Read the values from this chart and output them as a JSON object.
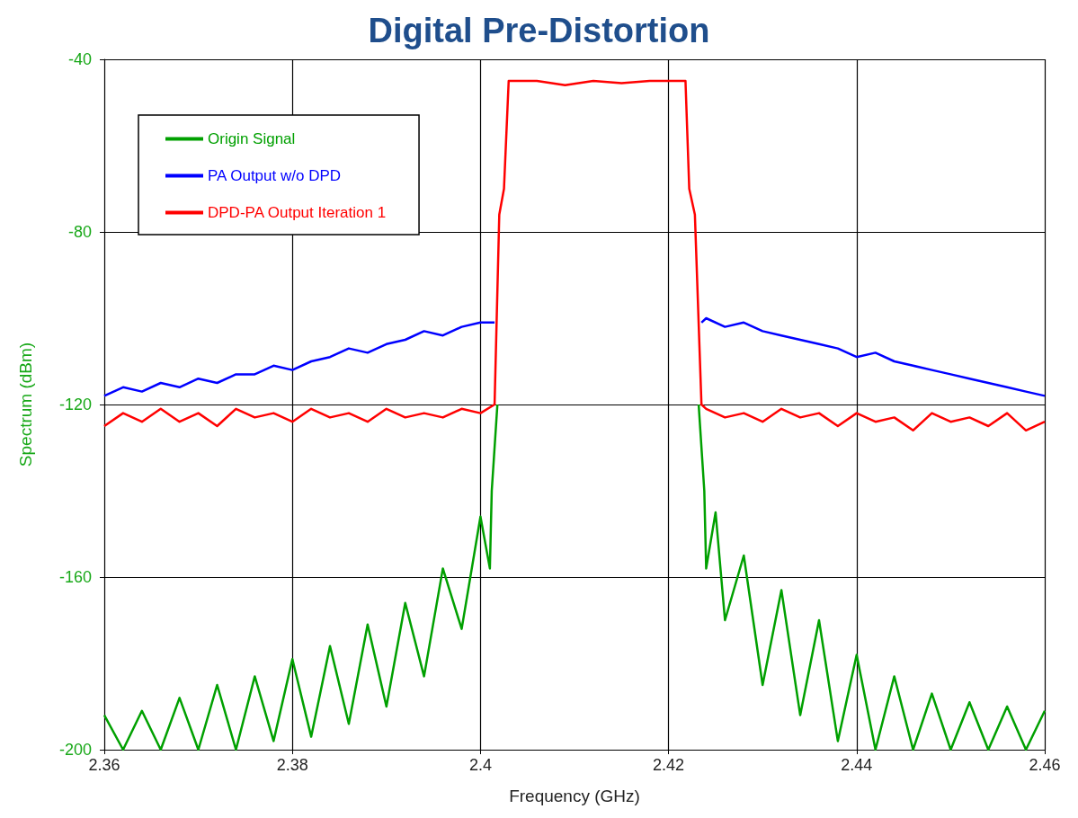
{
  "chart_data": {
    "type": "line",
    "title": "Digital Pre-Distortion",
    "xlabel": "Frequency (GHz)",
    "ylabel": "Spectrum (dBm)",
    "xlim": [
      2.36,
      2.46
    ],
    "ylim": [
      -200,
      -40
    ],
    "xticks": [
      2.36,
      2.38,
      2.4,
      2.42,
      2.44,
      2.46
    ],
    "yticks": [
      -200,
      -160,
      -120,
      -80,
      -40
    ],
    "grid": true,
    "legend": "top left",
    "marker": "none",
    "series": [
      {
        "name": "Origin Signal",
        "color": "#00a000",
        "x": [
          2.36,
          2.362,
          2.364,
          2.366,
          2.368,
          2.37,
          2.372,
          2.374,
          2.376,
          2.378,
          2.38,
          2.382,
          2.384,
          2.386,
          2.388,
          2.39,
          2.392,
          2.394,
          2.396,
          2.398,
          2.4,
          2.401,
          2.4012,
          2.4018,
          2.402,
          2.4025,
          2.403,
          2.406,
          2.409,
          2.412,
          2.415,
          2.418,
          2.4218,
          2.4222,
          2.4228,
          2.4232,
          2.4238,
          2.424,
          2.425,
          2.426,
          2.428,
          2.43,
          2.432,
          2.434,
          2.436,
          2.438,
          2.44,
          2.442,
          2.444,
          2.446,
          2.448,
          2.45,
          2.452,
          2.454,
          2.456,
          2.458,
          2.46
        ],
        "values": [
          -192,
          -200,
          -191,
          -200,
          -188,
          -200,
          -185,
          -200,
          -183,
          -198,
          -179,
          -197,
          -176,
          -194,
          -171,
          -190,
          -166,
          -183,
          -158,
          -172,
          -146,
          -158,
          -140,
          -120,
          null,
          null,
          null,
          null,
          null,
          null,
          null,
          null,
          null,
          null,
          null,
          -120,
          -140,
          -158,
          -145,
          -170,
          -155,
          -185,
          -163,
          -192,
          -170,
          -198,
          -178,
          -200,
          -183,
          -200,
          -187,
          -200,
          -189,
          -200,
          -190,
          -200,
          -191
        ]
      },
      {
        "name": "PA Output w/o DPD",
        "color": "#0000ff",
        "x": [
          2.36,
          2.362,
          2.364,
          2.366,
          2.368,
          2.37,
          2.372,
          2.374,
          2.376,
          2.378,
          2.38,
          2.382,
          2.384,
          2.386,
          2.388,
          2.39,
          2.392,
          2.394,
          2.396,
          2.398,
          2.4,
          2.4015,
          2.412,
          2.4235,
          2.424,
          2.426,
          2.428,
          2.43,
          2.432,
          2.434,
          2.436,
          2.438,
          2.44,
          2.442,
          2.444,
          2.446,
          2.448,
          2.45,
          2.452,
          2.454,
          2.456,
          2.458,
          2.46
        ],
        "values": [
          -118,
          -116,
          -117,
          -115,
          -116,
          -114,
          -115,
          -113,
          -113,
          -111,
          -112,
          -110,
          -109,
          -107,
          -108,
          -106,
          -105,
          -103,
          -104,
          -102,
          -101,
          -101,
          null,
          -101,
          -100,
          -102,
          -101,
          -103,
          -104,
          -105,
          -106,
          -107,
          -109,
          -108,
          -110,
          -111,
          -112,
          -113,
          -114,
          -115,
          -116,
          -117,
          -118
        ]
      },
      {
        "name": "DPD-PA Output Iteration 1",
        "color": "#ff0000",
        "x": [
          2.36,
          2.362,
          2.364,
          2.366,
          2.368,
          2.37,
          2.372,
          2.374,
          2.376,
          2.378,
          2.38,
          2.382,
          2.384,
          2.386,
          2.388,
          2.39,
          2.392,
          2.394,
          2.396,
          2.398,
          2.4,
          2.4015,
          2.402,
          2.4025,
          2.403,
          2.406,
          2.409,
          2.412,
          2.415,
          2.418,
          2.4218,
          2.4222,
          2.4228,
          2.4235,
          2.424,
          2.426,
          2.428,
          2.43,
          2.432,
          2.434,
          2.436,
          2.438,
          2.44,
          2.442,
          2.444,
          2.446,
          2.448,
          2.45,
          2.452,
          2.454,
          2.456,
          2.458,
          2.46
        ],
        "values": [
          -125,
          -122,
          -124,
          -121,
          -124,
          -122,
          -125,
          -121,
          -123,
          -122,
          -124,
          -121,
          -123,
          -122,
          -124,
          -121,
          -123,
          -122,
          -123,
          -121,
          -122,
          -120,
          -76,
          -70,
          -45,
          -45,
          -46,
          -45,
          -45.5,
          -45,
          -45,
          -70,
          -76,
          -120,
          -121,
          -123,
          -122,
          -124,
          -121,
          -123,
          -122,
          -125,
          -122,
          -124,
          -123,
          -126,
          -122,
          -124,
          -123,
          -125,
          -122,
          -126,
          -124
        ]
      }
    ]
  }
}
